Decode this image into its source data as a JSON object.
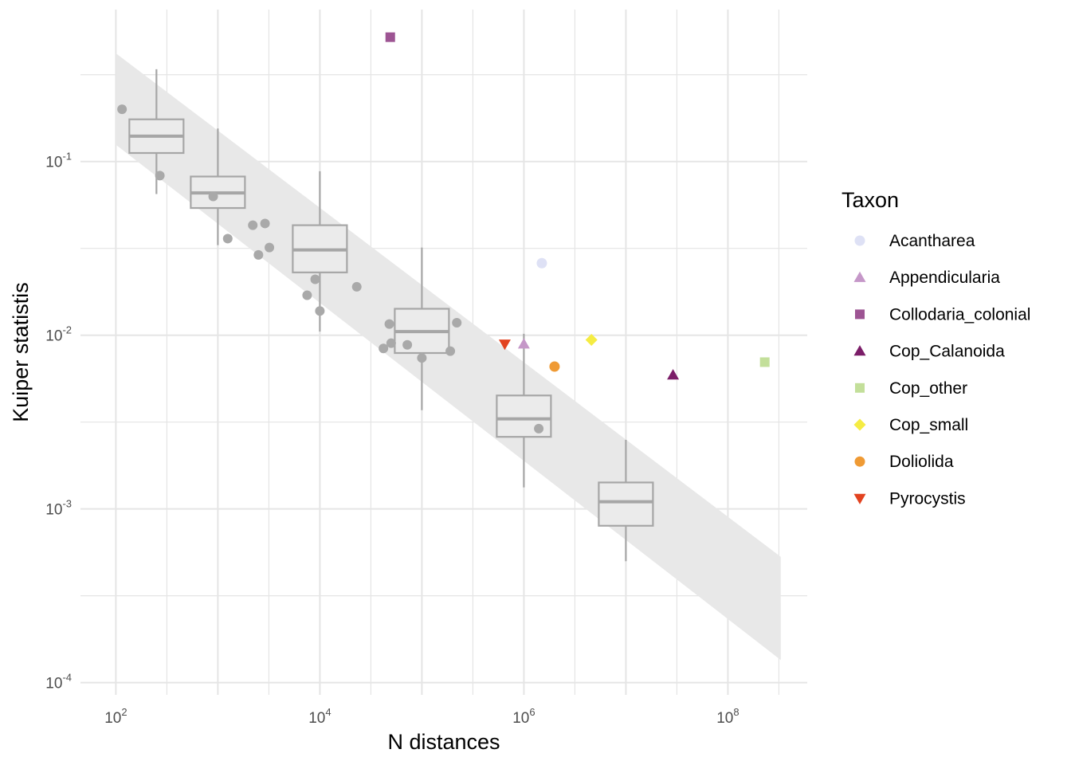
{
  "chart_data": {
    "type": "scatter",
    "xlabel": "N distances",
    "ylabel": "Kuiper statistis",
    "x_scale": "log10",
    "y_scale": "log10",
    "xlim": [
      45,
      600000000
    ],
    "ylim": [
      8.5e-05,
      0.75
    ],
    "grid": true,
    "x_ticks": [
      {
        "base": "10",
        "exp": "2",
        "value": 100
      },
      {
        "base": "10",
        "exp": "4",
        "value": 10000
      },
      {
        "base": "10",
        "exp": "6",
        "value": 1000000
      },
      {
        "base": "10",
        "exp": "8",
        "value": 100000000
      }
    ],
    "y_ticks": [
      {
        "base": "10",
        "exp": "-1",
        "value": 0.1
      },
      {
        "base": "10",
        "exp": "-2",
        "value": 0.01
      },
      {
        "base": "10",
        "exp": "-3",
        "value": 0.001
      },
      {
        "base": "10",
        "exp": "-4",
        "value": 0.0001
      }
    ],
    "prediction_band": {
      "x": [
        100,
        330000000
      ],
      "upper": [
        0.42,
        0.00053
      ],
      "lower": [
        0.125,
        0.000135
      ]
    },
    "boxplots": [
      {
        "x": 250,
        "min": 0.065,
        "q1": 0.112,
        "median": 0.14,
        "q3": 0.175,
        "max": 0.34
      },
      {
        "x": 1000,
        "min": 0.033,
        "q1": 0.054,
        "median": 0.066,
        "q3": 0.082,
        "max": 0.155
      },
      {
        "x": 10000,
        "min": 0.0105,
        "q1": 0.023,
        "median": 0.031,
        "q3": 0.043,
        "max": 0.088
      },
      {
        "x": 100000,
        "min": 0.0037,
        "q1": 0.0079,
        "median": 0.0105,
        "q3": 0.0142,
        "max": 0.032
      },
      {
        "x": 1000000,
        "min": 0.00133,
        "q1": 0.0026,
        "median": 0.0033,
        "q3": 0.0045,
        "max": 0.0102
      },
      {
        "x": 10000000,
        "min": 0.0005,
        "q1": 0.0008,
        "median": 0.0011,
        "q3": 0.00142,
        "max": 0.0025
      }
    ],
    "background_points": [
      {
        "x": 115,
        "y": 0.2
      },
      {
        "x": 270,
        "y": 0.083
      },
      {
        "x": 900,
        "y": 0.063
      },
      {
        "x": 1250,
        "y": 0.036
      },
      {
        "x": 2200,
        "y": 0.043
      },
      {
        "x": 2500,
        "y": 0.029
      },
      {
        "x": 2900,
        "y": 0.044
      },
      {
        "x": 3200,
        "y": 0.032
      },
      {
        "x": 7500,
        "y": 0.017
      },
      {
        "x": 9000,
        "y": 0.021
      },
      {
        "x": 10000,
        "y": 0.0138
      },
      {
        "x": 23000,
        "y": 0.019
      },
      {
        "x": 42000,
        "y": 0.0084
      },
      {
        "x": 48000,
        "y": 0.0116
      },
      {
        "x": 50000,
        "y": 0.009
      },
      {
        "x": 72000,
        "y": 0.0088
      },
      {
        "x": 100000,
        "y": 0.0074
      },
      {
        "x": 190000,
        "y": 0.0081
      },
      {
        "x": 220000,
        "y": 0.0118
      },
      {
        "x": 1400000,
        "y": 0.0029
      }
    ],
    "series": [
      {
        "name": "Acantharea",
        "shape": "circle",
        "color": "#dee1f5",
        "points": [
          {
            "x": 1500000,
            "y": 0.026
          }
        ]
      },
      {
        "name": "Appendicularia",
        "shape": "triangle",
        "color": "#c597c8",
        "points": [
          {
            "x": 1000000,
            "y": 0.0089
          }
        ]
      },
      {
        "name": "Collodaria_colonial",
        "shape": "square",
        "color": "#9d5493",
        "points": [
          {
            "x": 49000,
            "y": 0.52
          }
        ]
      },
      {
        "name": "Cop_Calanoida",
        "shape": "triangle",
        "color": "#7b1d68",
        "points": [
          {
            "x": 29000000,
            "y": 0.0059
          }
        ]
      },
      {
        "name": "Cop_other",
        "shape": "square",
        "color": "#c3df9a",
        "points": [
          {
            "x": 230000000,
            "y": 0.007
          }
        ]
      },
      {
        "name": "Cop_small",
        "shape": "diamond",
        "color": "#f5ec43",
        "points": [
          {
            "x": 4600000,
            "y": 0.0094
          }
        ]
      },
      {
        "name": "Doliolida",
        "shape": "circle",
        "color": "#ef9a34",
        "points": [
          {
            "x": 2000000,
            "y": 0.0066
          }
        ]
      },
      {
        "name": "Pyrocystis",
        "shape": "triangle-down",
        "color": "#e2421f",
        "points": [
          {
            "x": 650000,
            "y": 0.0089
          }
        ]
      }
    ]
  },
  "legend": {
    "title": "Taxon",
    "position": "right"
  },
  "colors": {
    "box_stroke": "#a6a6a6",
    "box_fill": "#ebebeb",
    "band_fill": "#e8e8e8",
    "gray_point": "#a9a9a9",
    "grid_major": "#e5e5e5"
  }
}
